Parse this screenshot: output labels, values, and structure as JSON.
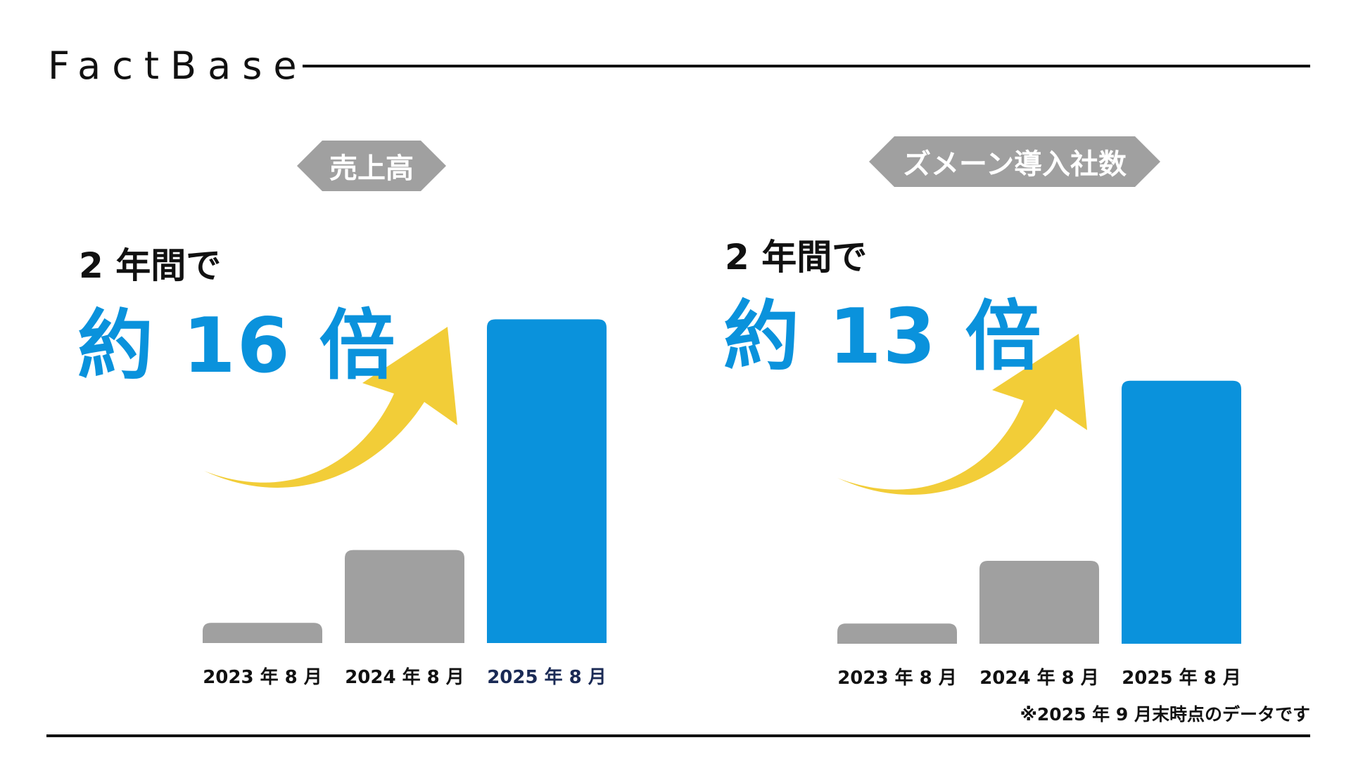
{
  "brand": "FactBase",
  "footnote": "※2025 年 9 月末時点のデータです",
  "colors": {
    "accent": "#0a92dc",
    "gray": "#a0a0a0",
    "arrow": "#f2cd38",
    "ink": "#111111",
    "highlight_label": "#1a2a55"
  },
  "panels": [
    {
      "tag": "売上高",
      "lead": "2 年間で",
      "big": "約 16 倍"
    },
    {
      "tag": "ズメーン導入社数",
      "lead": "2 年間で",
      "big": "約 13 倍"
    }
  ],
  "chart_data": [
    {
      "type": "bar",
      "categories": [
        "2023 年 8 月",
        "2024 年 8 月",
        "2025 年 8 月"
      ],
      "values": [
        1,
        4.6,
        16
      ],
      "ylim": [
        0,
        16.5
      ],
      "bar_colors": [
        "#a0a0a0",
        "#a0a0a0",
        "#0a92dc"
      ]
    },
    {
      "type": "bar",
      "categories": [
        "2023 年 8 月",
        "2024 年 8 月",
        "2025 年 8 月"
      ],
      "values": [
        1,
        4.1,
        13
      ],
      "ylim": [
        0,
        16.5
      ],
      "bar_colors": [
        "#a0a0a0",
        "#a0a0a0",
        "#0a92dc"
      ]
    }
  ]
}
